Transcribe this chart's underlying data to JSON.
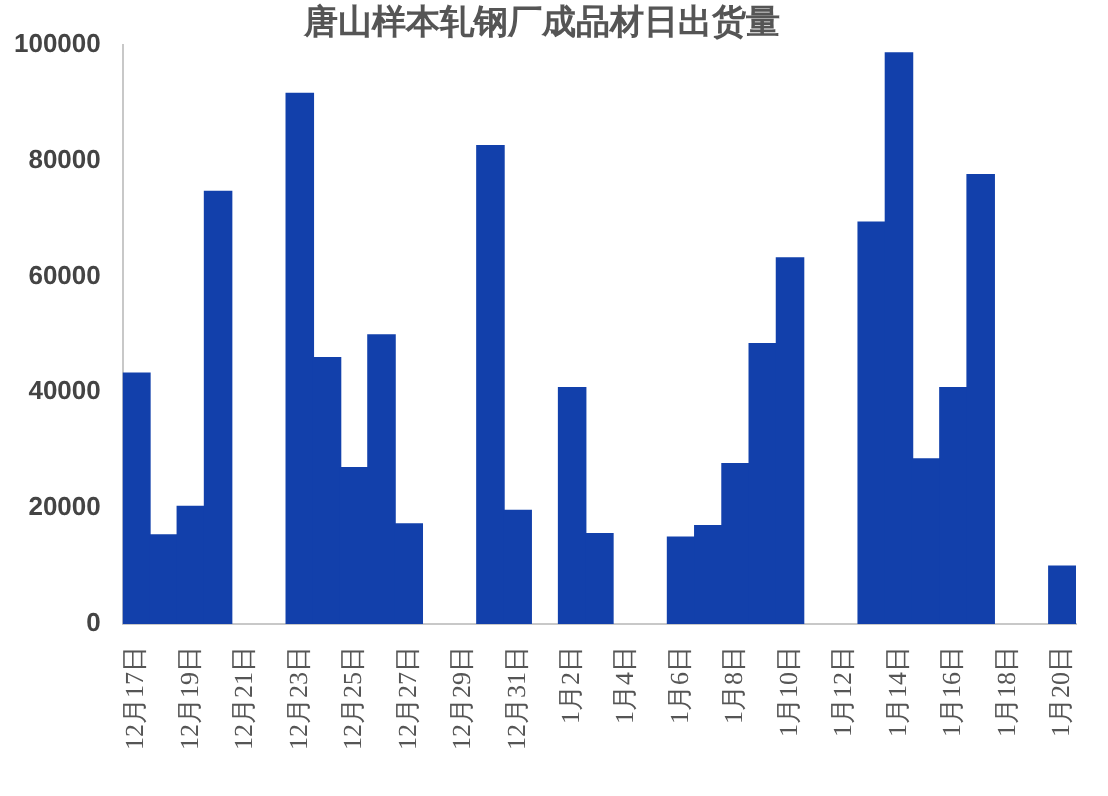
{
  "chart_data": {
    "type": "bar",
    "title": "唐山样本轧钢厂成品材日出货量",
    "categories": [
      "12月17日",
      null,
      "12月19日",
      null,
      "12月21日",
      null,
      "12月23日",
      null,
      "12月25日",
      null,
      "12月27日",
      null,
      "12月29日",
      null,
      "12月31日",
      null,
      "1月2日",
      null,
      "1月4日",
      null,
      "1月6日",
      null,
      "1月8日",
      null,
      "1月10日",
      null,
      "1月12日",
      null,
      "1月14日",
      null,
      "1月16日",
      null,
      "1月18日",
      null,
      "1月20日"
    ],
    "values": [
      43300,
      15400,
      20300,
      74700,
      null,
      null,
      91600,
      46000,
      27000,
      49900,
      17300,
      null,
      null,
      82600,
      19600,
      null,
      40800,
      15600,
      null,
      null,
      15000,
      17000,
      27700,
      48400,
      63200,
      null,
      null,
      69400,
      98600,
      28500,
      40800,
      77600,
      null,
      null,
      10000
    ],
    "color": "#1240ab",
    "ylim": [
      0,
      100000
    ],
    "yticks": [
      0,
      20000,
      40000,
      60000,
      80000,
      100000
    ],
    "grid": false
  }
}
